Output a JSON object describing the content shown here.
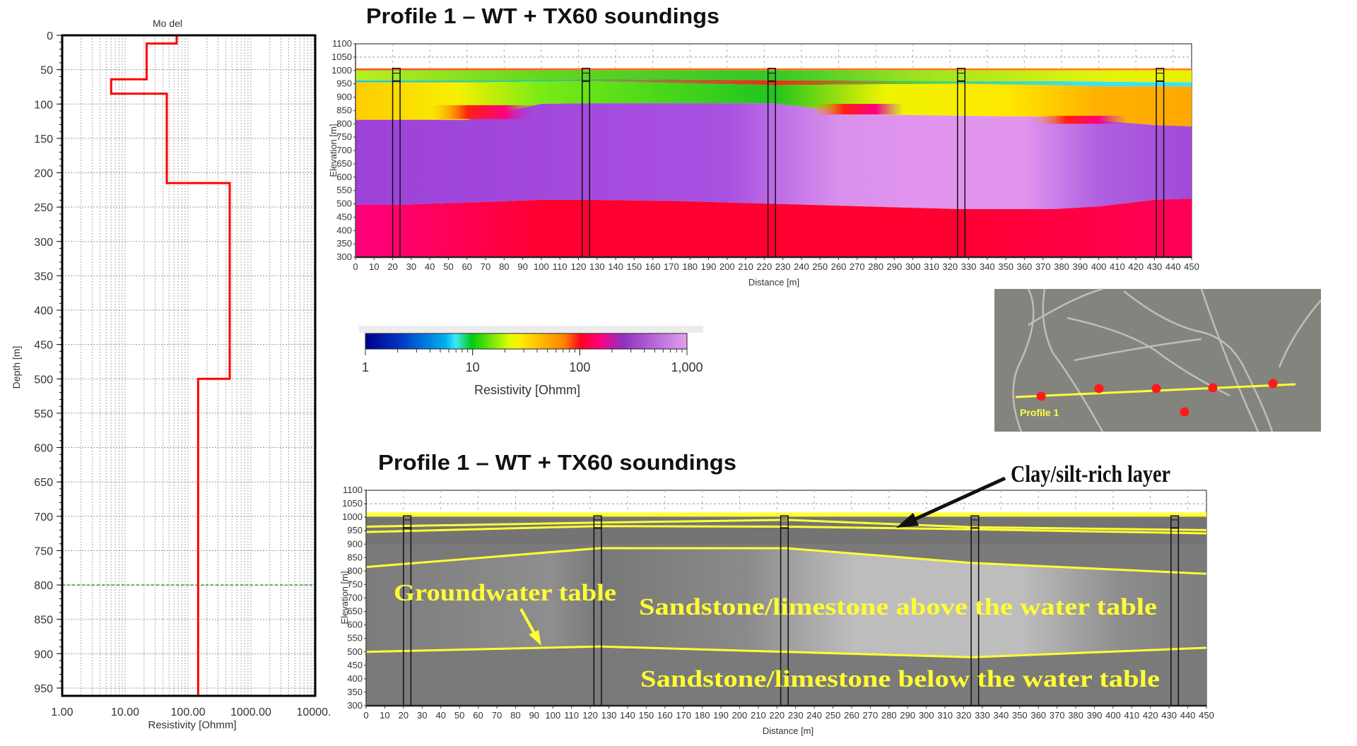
{
  "colors": {
    "model_line": "#ff0000",
    "reference_line": "#2e9e2e",
    "interpretation_lines": "#ffff33",
    "annotation_yellow": "#ffff33",
    "annotation_black": "#111111",
    "map_points": "#ff1a1a"
  },
  "chart_data": [
    {
      "id": "model",
      "type": "line",
      "title": "Mo del",
      "xlabel": "Resistivity [Ohmm]",
      "ylabel": "Depth [m]",
      "x_scale": "log",
      "xlim": [
        1,
        10000
      ],
      "ylim": [
        0,
        960
      ],
      "y_inverted": true,
      "grid": true,
      "x_tick_values": [
        1,
        10,
        100,
        1000,
        10000
      ],
      "x_tick_labels": [
        "1.00",
        "10.00",
        "100.00",
        "1000.00",
        "10000."
      ],
      "y_ticks": [
        0,
        50,
        100,
        150,
        200,
        250,
        300,
        350,
        400,
        450,
        500,
        550,
        600,
        650,
        700,
        750,
        800,
        850,
        900,
        950
      ],
      "layers": [
        {
          "top": 0,
          "bottom": 12,
          "resistivity": 66
        },
        {
          "top": 12,
          "bottom": 64,
          "resistivity": 22
        },
        {
          "top": 64,
          "bottom": 85,
          "resistivity": 6
        },
        {
          "top": 85,
          "bottom": 215,
          "resistivity": 46
        },
        {
          "top": 215,
          "bottom": 500,
          "resistivity": 460
        },
        {
          "top": 500,
          "bottom": 960,
          "resistivity": 145
        }
      ],
      "reference_depth": 800
    },
    {
      "id": "section_resistivity",
      "type": "heatmap",
      "title": "Profile 1 – WT + TX60 soundings",
      "xlabel": "Distance [m]",
      "ylabel": "Elevation [m]",
      "xlim": [
        0,
        450
      ],
      "ylim": [
        300,
        1100
      ],
      "x_ticks": [
        0,
        10,
        20,
        30,
        40,
        50,
        60,
        70,
        80,
        90,
        100,
        110,
        120,
        130,
        140,
        150,
        160,
        170,
        180,
        190,
        200,
        210,
        220,
        230,
        240,
        250,
        260,
        270,
        280,
        290,
        300,
        310,
        320,
        330,
        340,
        350,
        360,
        370,
        380,
        390,
        400,
        410,
        420,
        430,
        440,
        450
      ],
      "y_ticks": [
        300,
        350,
        400,
        450,
        500,
        550,
        600,
        650,
        700,
        750,
        800,
        850,
        900,
        950,
        1000,
        1050,
        1100
      ],
      "boundary_distances": [
        0,
        25,
        60,
        100,
        125,
        175,
        225,
        275,
        325,
        375,
        400,
        430,
        450
      ],
      "layers": [
        {
          "top": [
            1008,
            1008,
            1008,
            1008,
            1008,
            1008,
            1008,
            1008,
            1008,
            1008,
            1008,
            1008,
            1008
          ],
          "bottom": [
            1000,
            1000,
            1000,
            1000,
            1000,
            1000,
            1000,
            1000,
            1000,
            1000,
            1000,
            1000,
            1000
          ],
          "color_stops": [
            [
              0,
              "#ff5a1a"
            ],
            [
              450,
              "#ff8a10"
            ]
          ]
        },
        {
          "top": [
            1000,
            1000,
            1000,
            1000,
            1000,
            1000,
            1000,
            1000,
            1000,
            1000,
            1000,
            1000,
            1000
          ],
          "bottom": [
            963,
            963,
            963,
            966,
            968,
            966,
            963,
            962,
            960,
            960,
            958,
            956,
            956
          ],
          "color_stops": [
            [
              0,
              "#b8ee22"
            ],
            [
              100,
              "#60d820"
            ],
            [
              225,
              "#30c828"
            ],
            [
              300,
              "#98e420"
            ],
            [
              400,
              "#e4f20c"
            ],
            [
              450,
              "#eaf000"
            ]
          ]
        },
        {
          "top": [
            963,
            963,
            963,
            966,
            968,
            966,
            963,
            962,
            960,
            960,
            958,
            956,
            956
          ],
          "bottom": [
            955,
            955,
            955,
            958,
            960,
            952,
            945,
            948,
            950,
            945,
            940,
            940,
            940
          ],
          "color_stops": [
            [
              0,
              "#38c8c0"
            ],
            [
              100,
              "#40d060"
            ],
            [
              225,
              "#e83010"
            ],
            [
              300,
              "#50d040"
            ],
            [
              390,
              "#40e0f0"
            ],
            [
              450,
              "#40e0f0"
            ]
          ]
        },
        {
          "top": [
            955,
            955,
            955,
            958,
            960,
            952,
            945,
            948,
            950,
            945,
            940,
            940,
            940
          ],
          "bottom": [
            815,
            815,
            815,
            875,
            877,
            877,
            877,
            835,
            830,
            826,
            812,
            795,
            790
          ],
          "color_stops": [
            [
              0,
              "#ffcc00"
            ],
            [
              55,
              "#f6f000"
            ],
            [
              100,
              "#78ec14"
            ],
            [
              225,
              "#20c420"
            ],
            [
              285,
              "#eef400"
            ],
            [
              350,
              "#ffe800"
            ],
            [
              400,
              "#ffb000"
            ],
            [
              450,
              "#ffa800"
            ]
          ]
        },
        {
          "top": [
            815,
            815,
            815,
            875,
            877,
            877,
            877,
            835,
            830,
            826,
            812,
            795,
            790
          ],
          "bottom": [
            497,
            497,
            505,
            515,
            515,
            510,
            500,
            490,
            480,
            480,
            490,
            515,
            520
          ],
          "color_stops": [
            [
              0,
              "#9c42d8"
            ],
            [
              200,
              "#a850e0"
            ],
            [
              260,
              "#d890ec"
            ],
            [
              300,
              "#e094ee"
            ],
            [
              360,
              "#e094ee"
            ],
            [
              400,
              "#b060e0"
            ],
            [
              450,
              "#a04ad8"
            ]
          ]
        },
        {
          "top": [
            497,
            497,
            505,
            515,
            515,
            510,
            500,
            490,
            480,
            480,
            490,
            515,
            520
          ],
          "bottom": [
            300,
            300,
            300,
            300,
            300,
            300,
            300,
            300,
            300,
            300,
            300,
            300,
            300
          ],
          "color_stops": [
            [
              0,
              "#ff0080"
            ],
            [
              100,
              "#ff0030"
            ],
            [
              320,
              "#ff0030"
            ],
            [
              450,
              "#ff0058"
            ]
          ]
        }
      ],
      "soundings_distance": [
        20,
        122,
        222,
        324,
        431
      ]
    },
    {
      "id": "colorbar",
      "type": "colorbar",
      "label": "Resistivity [Ohmm]",
      "scale": "log",
      "range": [
        1,
        1000
      ],
      "tick_values": [
        1,
        10,
        100,
        1000
      ],
      "tick_labels": [
        "1",
        "10",
        "100",
        "1,000"
      ],
      "color_stops": [
        [
          0,
          "#00008b"
        ],
        [
          0.1,
          "#0030c0"
        ],
        [
          0.25,
          "#00b0f0"
        ],
        [
          0.28,
          "#40e8ff"
        ],
        [
          0.33,
          "#00cc10"
        ],
        [
          0.45,
          "#e0ff00"
        ],
        [
          0.48,
          "#ffee00"
        ],
        [
          0.62,
          "#ff8000"
        ],
        [
          0.67,
          "#ff0020"
        ],
        [
          0.73,
          "#ff0080"
        ],
        [
          0.8,
          "#9030c0"
        ],
        [
          1,
          "#e0a0f0"
        ]
      ]
    },
    {
      "id": "section_interpretation",
      "type": "heatmap",
      "title": "Profile 1 – WT + TX60 soundings",
      "xlabel": "Distance [m]",
      "ylabel": "Elevation [m]",
      "xlim": [
        0,
        450
      ],
      "ylim": [
        300,
        1100
      ],
      "x_ticks": [
        0,
        10,
        20,
        30,
        40,
        50,
        60,
        70,
        80,
        90,
        100,
        110,
        120,
        130,
        140,
        150,
        160,
        170,
        180,
        190,
        200,
        210,
        220,
        230,
        240,
        250,
        260,
        270,
        280,
        290,
        300,
        310,
        320,
        330,
        340,
        350,
        360,
        370,
        380,
        390,
        400,
        410,
        420,
        430,
        440,
        450
      ],
      "y_ticks": [
        300,
        350,
        400,
        450,
        500,
        550,
        600,
        650,
        700,
        750,
        800,
        850,
        900,
        950,
        1000,
        1050,
        1100
      ],
      "interfaces": [
        {
          "points": [
            [
              0,
              1010
            ],
            [
              450,
              1010
            ]
          ]
        },
        {
          "points": [
            [
              0,
              965
            ],
            [
              125,
              980
            ],
            [
              225,
              990
            ],
            [
              325,
              963
            ],
            [
              450,
              952
            ]
          ]
        },
        {
          "points": [
            [
              0,
              945
            ],
            [
              125,
              967
            ],
            [
              225,
              965
            ],
            [
              325,
              955
            ],
            [
              450,
              940
            ]
          ]
        },
        {
          "points": [
            [
              0,
              815
            ],
            [
              125,
              885
            ],
            [
              225,
              885
            ],
            [
              325,
              830
            ],
            [
              450,
              790
            ]
          ]
        },
        {
          "points": [
            [
              0,
              500
            ],
            [
              125,
              520
            ],
            [
              225,
              500
            ],
            [
              325,
              480
            ],
            [
              450,
              515
            ]
          ]
        }
      ],
      "soundings_distance": [
        20,
        122,
        222,
        324,
        431
      ],
      "annotations": {
        "groundwater": "Groundwater table",
        "above": "Sandstone/limestone above the water table",
        "below": "Sandstone/limestone below the water table",
        "clay": "Clay/silt-rich layer"
      }
    }
  ],
  "map_inset": {
    "profile_label": "Profile 1"
  }
}
